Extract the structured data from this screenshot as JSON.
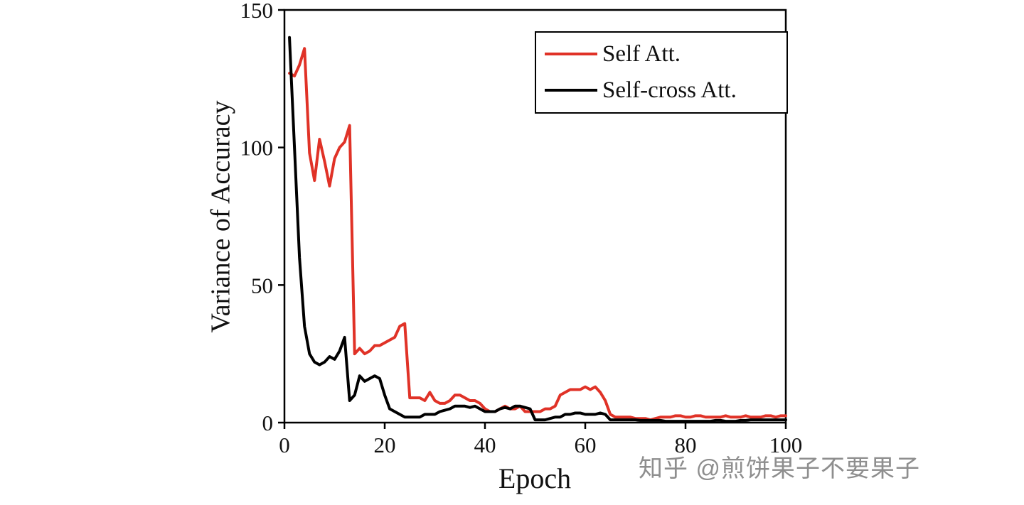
{
  "page": {
    "background": "#ffffff"
  },
  "watermark": {
    "text": "知乎 @煎饼果子不要果子",
    "color": "#8e8e8e"
  },
  "chart_data": {
    "type": "line",
    "title": "",
    "xlabel": "Epoch",
    "ylabel": "Variance of Accuracy",
    "xlim": [
      0,
      100
    ],
    "ylim": [
      0,
      150
    ],
    "xticks": [
      0,
      20,
      40,
      60,
      80,
      100
    ],
    "yticks": [
      0,
      50,
      100,
      150
    ],
    "grid": false,
    "legend_position": "top-right",
    "axis_color": "#000000",
    "line_width": 4,
    "series": [
      {
        "name": "Self Att.",
        "color": "#e03227",
        "x_start": 1,
        "x_step": 1,
        "values": [
          127,
          126,
          130,
          136,
          98,
          88,
          103,
          95,
          86,
          96,
          100,
          102,
          108,
          25,
          27,
          25,
          26,
          28,
          28,
          29,
          30,
          31,
          35,
          36,
          9,
          9,
          9,
          8,
          11,
          8,
          7,
          7,
          8,
          10,
          10,
          9,
          8,
          8,
          7,
          5,
          4,
          4,
          5,
          6,
          5,
          5,
          6,
          4,
          4,
          4,
          4,
          5,
          5,
          6,
          10,
          11,
          12,
          12,
          12,
          13,
          12,
          13,
          11,
          8,
          3,
          2,
          2,
          2,
          2,
          1.5,
          1.5,
          1.5,
          1,
          1.5,
          2,
          2,
          2,
          2.5,
          2.5,
          2,
          2,
          2.5,
          2.5,
          2,
          2,
          2,
          2,
          2.5,
          2,
          2,
          2,
          2.5,
          2,
          2,
          2,
          2.5,
          2.5,
          2,
          2.5,
          2.5
        ]
      },
      {
        "name": "Self-cross Att.",
        "color": "#000000",
        "x_start": 1,
        "x_step": 1,
        "values": [
          140,
          100,
          60,
          35,
          25,
          22,
          21,
          22,
          24,
          23,
          26,
          31,
          8,
          10,
          17,
          15,
          16,
          17,
          16,
          10,
          5,
          4,
          3,
          2,
          2,
          2,
          2,
          3,
          3,
          3,
          4,
          4.5,
          5,
          6,
          6,
          6,
          5.5,
          6,
          5,
          4,
          4,
          4,
          5,
          5.5,
          5,
          6,
          6,
          5.5,
          5,
          1,
          1,
          1,
          1.5,
          2,
          2,
          3,
          3,
          3.5,
          3.5,
          3,
          3,
          3,
          3.5,
          3,
          1,
          1,
          1,
          1,
          1,
          1,
          0.8,
          0.8,
          0.8,
          0.8,
          0.8,
          0.5,
          0.5,
          0.5,
          0.5,
          0.5,
          0.5,
          0.5,
          0.5,
          0.5,
          0.5,
          0.8,
          0.8,
          0.5,
          0.5,
          0.5,
          0.8,
          0.8,
          1,
          1,
          1,
          1,
          1,
          1,
          1,
          1
        ]
      }
    ]
  }
}
